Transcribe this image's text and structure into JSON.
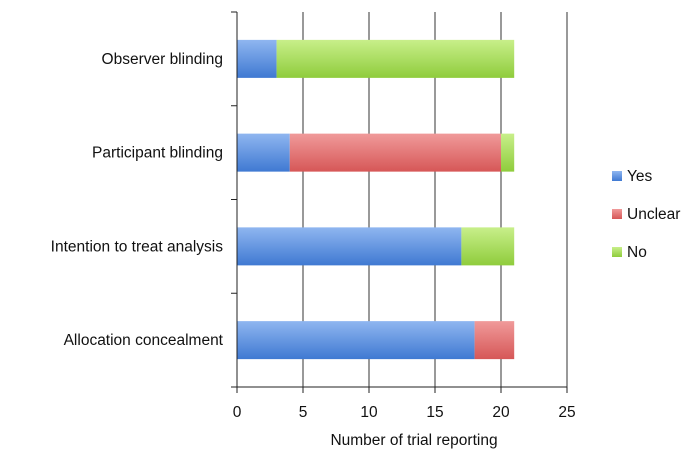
{
  "chart_data": {
    "type": "bar",
    "orientation": "horizontal",
    "stacked": true,
    "title": "",
    "xlabel": "Number of trial reporting",
    "ylabel": "",
    "xlim": [
      0,
      25
    ],
    "x_ticks": [
      0,
      5,
      10,
      15,
      20,
      25
    ],
    "grid": "vertical",
    "legend_position": "right",
    "categories": [
      "Observer blinding",
      "Participant blinding",
      "Intention to treat analysis",
      "Allocation concealment"
    ],
    "series": [
      {
        "name": "Yes",
        "color": "#4a86dc",
        "values": [
          3,
          4,
          17,
          18
        ]
      },
      {
        "name": "Unclear",
        "color": "#e06666",
        "values": [
          0,
          16,
          0,
          3
        ]
      },
      {
        "name": "No",
        "color": "#9dd64a",
        "values": [
          18,
          1,
          4,
          0
        ]
      }
    ]
  }
}
